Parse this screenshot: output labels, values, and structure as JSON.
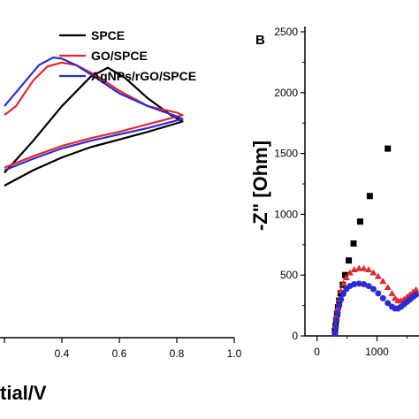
{
  "chart_data": [
    {
      "type": "line",
      "xlabel": "tial/V",
      "xlim": [
        0.2,
        1.0
      ],
      "xticks": [
        "0.4",
        "0.6",
        "0.8",
        "1.0"
      ],
      "legend_position": "top-right",
      "series": [
        {
          "name": "SPCE",
          "color": "#000000",
          "x": [
            0.2,
            0.3,
            0.4,
            0.5,
            0.56,
            0.62,
            0.7,
            0.78,
            0.82,
            0.7,
            0.6,
            0.5,
            0.4,
            0.3,
            0.2
          ],
          "y": [
            0.1,
            0.35,
            0.62,
            0.85,
            0.92,
            0.84,
            0.68,
            0.55,
            0.5,
            0.42,
            0.36,
            0.3,
            0.22,
            0.12,
            0.0
          ]
        },
        {
          "name": "GO/SPCE",
          "color": "#e8262c",
          "x": [
            0.2,
            0.24,
            0.3,
            0.35,
            0.4,
            0.45,
            0.52,
            0.6,
            0.7,
            0.8,
            0.82,
            0.7,
            0.6,
            0.5,
            0.4,
            0.3,
            0.2
          ],
          "y": [
            0.55,
            0.62,
            0.82,
            0.93,
            0.96,
            0.94,
            0.86,
            0.74,
            0.62,
            0.57,
            0.55,
            0.48,
            0.42,
            0.37,
            0.31,
            0.23,
            0.14
          ]
        },
        {
          "name": "AgNPs/rGO/SPCE",
          "color": "#2b2bd6",
          "x": [
            0.2,
            0.26,
            0.32,
            0.37,
            0.4,
            0.45,
            0.52,
            0.6,
            0.7,
            0.8,
            0.82,
            0.7,
            0.6,
            0.5,
            0.4,
            0.3,
            0.2
          ],
          "y": [
            0.62,
            0.78,
            0.94,
            1.0,
            0.99,
            0.94,
            0.84,
            0.72,
            0.62,
            0.54,
            0.52,
            0.45,
            0.4,
            0.35,
            0.29,
            0.21,
            0.12
          ]
        }
      ]
    },
    {
      "type": "scatter",
      "panel_label": "B",
      "ylabel": "-Z\" [Ohm]",
      "xlim": [
        -200,
        1700
      ],
      "ylim": [
        0,
        2500
      ],
      "xticks": [
        "0",
        "1000"
      ],
      "yticks": [
        "0",
        "500",
        "1000",
        "1500",
        "2000",
        "2500"
      ],
      "series": [
        {
          "marker": "square",
          "color": "#000000",
          "x": [
            300,
            310,
            320,
            335,
            350,
            370,
            395,
            430,
            470,
            530,
            610,
            720,
            880,
            1180
          ],
          "y": [
            40,
            80,
            130,
            180,
            235,
            290,
            350,
            420,
            500,
            620,
            760,
            940,
            1150,
            1540
          ]
        },
        {
          "marker": "triangle",
          "color": "#e8262c",
          "x": [
            300,
            310,
            325,
            345,
            370,
            400,
            440,
            490,
            550,
            620,
            700,
            780,
            860,
            940,
            1020,
            1100,
            1180,
            1250,
            1300,
            1350,
            1400,
            1450,
            1500,
            1550,
            1600,
            1650,
            1700
          ],
          "y": [
            30,
            90,
            160,
            230,
            300,
            370,
            430,
            480,
            520,
            545,
            555,
            555,
            545,
            520,
            490,
            450,
            400,
            350,
            310,
            290,
            290,
            300,
            320,
            340,
            360,
            380,
            400
          ]
        },
        {
          "marker": "circle",
          "color": "#2b2bd6",
          "x": [
            300,
            310,
            325,
            345,
            370,
            400,
            440,
            490,
            550,
            620,
            700,
            780,
            860,
            940,
            1020,
            1100,
            1180,
            1250,
            1300,
            1350,
            1400,
            1450,
            1500,
            1550,
            1600,
            1650,
            1700
          ],
          "y": [
            20,
            70,
            130,
            190,
            250,
            300,
            345,
            385,
            410,
            425,
            430,
            425,
            410,
            385,
            350,
            310,
            270,
            240,
            225,
            225,
            240,
            260,
            280,
            300,
            320,
            340,
            360
          ]
        }
      ]
    }
  ]
}
